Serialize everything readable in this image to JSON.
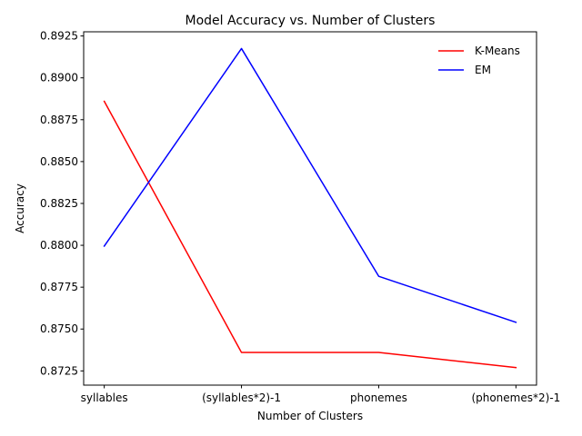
{
  "chart_data": {
    "type": "line",
    "title": "Model Accuracy vs. Number of Clusters",
    "xlabel": "Number of Clusters",
    "ylabel": "Accuracy",
    "categories": [
      "syllables",
      "(syllables*2)-1",
      "phonemes",
      "(phonemes*2)-1"
    ],
    "series": [
      {
        "name": "K-Means",
        "color": "#ff0000",
        "values": [
          0.8886,
          0.8736,
          0.8736,
          0.8727
        ]
      },
      {
        "name": "EM",
        "color": "#0000ff",
        "values": [
          0.87995,
          0.89175,
          0.87815,
          0.8754
        ]
      }
    ],
    "yticks": [
      "0.8725",
      "0.8750",
      "0.8775",
      "0.8800",
      "0.8825",
      "0.8850",
      "0.8875",
      "0.8900",
      "0.8925"
    ],
    "ylim": [
      0.87165,
      0.89275
    ],
    "grid": false,
    "legend_position": "top-right"
  }
}
